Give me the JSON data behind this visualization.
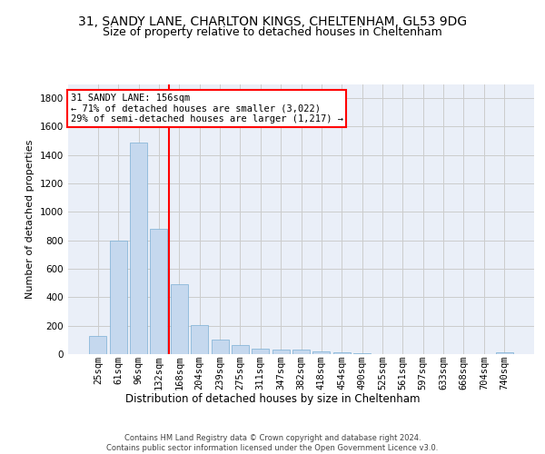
{
  "title_line1": "31, SANDY LANE, CHARLTON KINGS, CHELTENHAM, GL53 9DG",
  "title_line2": "Size of property relative to detached houses in Cheltenham",
  "xlabel": "Distribution of detached houses by size in Cheltenham",
  "ylabel": "Number of detached properties",
  "footer_line1": "Contains HM Land Registry data © Crown copyright and database right 2024.",
  "footer_line2": "Contains public sector information licensed under the Open Government Licence v3.0.",
  "categories": [
    "25sqm",
    "61sqm",
    "96sqm",
    "132sqm",
    "168sqm",
    "204sqm",
    "239sqm",
    "275sqm",
    "311sqm",
    "347sqm",
    "382sqm",
    "418sqm",
    "454sqm",
    "490sqm",
    "525sqm",
    "561sqm",
    "597sqm",
    "633sqm",
    "668sqm",
    "704sqm",
    "740sqm"
  ],
  "values": [
    125,
    800,
    1490,
    880,
    490,
    205,
    105,
    65,
    40,
    35,
    30,
    22,
    10,
    5,
    3,
    2,
    2,
    1,
    1,
    1,
    15
  ],
  "bar_color": "#c5d8ee",
  "bar_edge_color": "#7aafd4",
  "vline_color": "red",
  "vline_pos": 3.5,
  "annotation_text": "31 SANDY LANE: 156sqm\n← 71% of detached houses are smaller (3,022)\n29% of semi-detached houses are larger (1,217) →",
  "ylim_max": 1900,
  "yticks": [
    0,
    200,
    400,
    600,
    800,
    1000,
    1200,
    1400,
    1600,
    1800
  ],
  "grid_color": "#cccccc",
  "plot_bg_color": "#eaeff8",
  "title_fontsize": 10,
  "subtitle_fontsize": 9,
  "tick_fontsize": 7.5,
  "ylabel_fontsize": 8,
  "xlabel_fontsize": 8.5,
  "footer_fontsize": 6.0,
  "annot_fontsize": 7.5
}
